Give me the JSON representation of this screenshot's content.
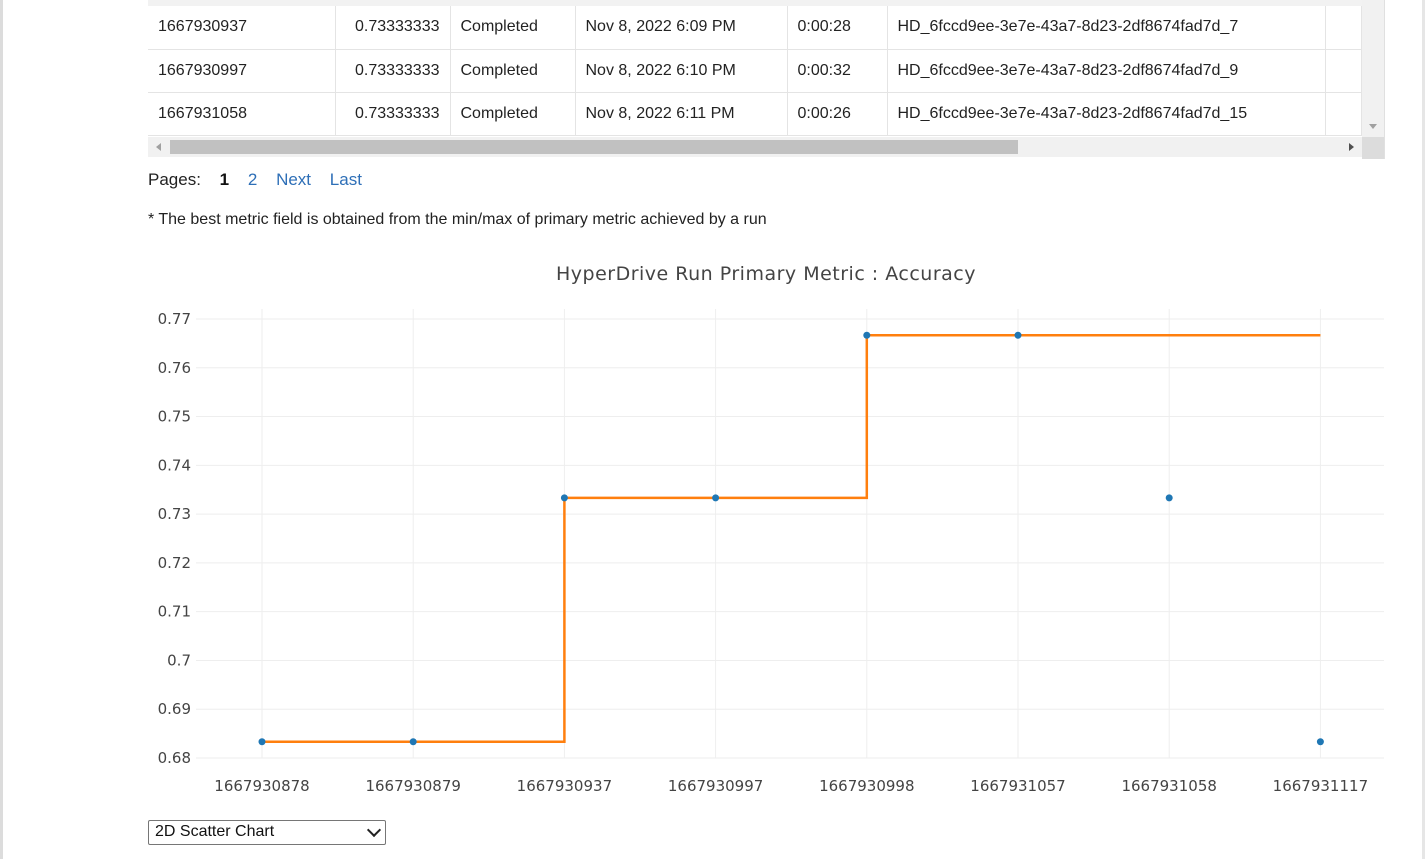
{
  "table": {
    "rows": [
      {
        "run_number": "1667930937",
        "best_metric": "0.73333333",
        "status": "Completed",
        "started": "Nov 8, 2022 6:09 PM",
        "duration": "0:00:28",
        "run_id": "HD_6fccd9ee-3e7e-43a7-8d23-2df8674fad7d_7"
      },
      {
        "run_number": "1667930997",
        "best_metric": "0.73333333",
        "status": "Completed",
        "started": "Nov 8, 2022 6:10 PM",
        "duration": "0:00:32",
        "run_id": "HD_6fccd9ee-3e7e-43a7-8d23-2df8674fad7d_9"
      },
      {
        "run_number": "1667931058",
        "best_metric": "0.73333333",
        "status": "Completed",
        "started": "Nov 8, 2022 6:11 PM",
        "duration": "0:00:26",
        "run_id": "HD_6fccd9ee-3e7e-43a7-8d23-2df8674fad7d_15"
      }
    ]
  },
  "pager": {
    "label": "Pages:",
    "current": "1",
    "page2": "2",
    "next": "Next",
    "last": "Last"
  },
  "note": "* The best metric field is obtained from the min/max of primary metric achieved by a run",
  "chart_type_select": {
    "selected": "2D Scatter Chart"
  },
  "chart_data": {
    "type": "scatter",
    "title": "HyperDrive Run Primary Metric : Accuracy",
    "xlabel": "",
    "ylabel": "",
    "categories": [
      "1667930878",
      "1667930879",
      "1667930937",
      "1667930997",
      "1667930998",
      "1667931057",
      "1667931058",
      "1667931117"
    ],
    "series": [
      {
        "type": "scatter",
        "color": "#1f77b4",
        "values": [
          0.68333333,
          0.68333333,
          0.73333333,
          0.73333333,
          0.76666667,
          0.76666667,
          0.73333333,
          0.68333333
        ]
      },
      {
        "type": "step-line",
        "color": "#ff7f0e",
        "values": [
          0.68333333,
          0.68333333,
          0.73333333,
          0.73333333,
          0.76666667,
          0.76666667,
          0.76666667,
          0.76666667
        ]
      }
    ],
    "ylim": [
      0.68,
      0.77
    ],
    "yticks": [
      "0.77",
      "0.76",
      "0.75",
      "0.74",
      "0.73",
      "0.72",
      "0.71",
      "0.7",
      "0.69",
      "0.68"
    ],
    "grid": true
  }
}
